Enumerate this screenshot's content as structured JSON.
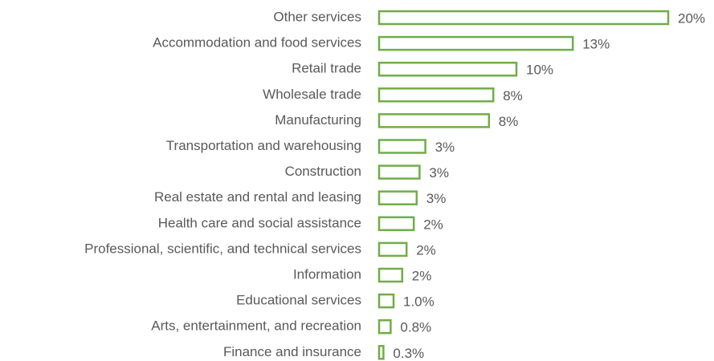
{
  "chart_data": {
    "type": "bar",
    "orientation": "horizontal",
    "color": "#70ad47",
    "categories": [
      "Other services",
      "Accommodation and food services",
      "Retail trade",
      "Wholesale trade",
      "Manufacturing",
      "Transportation and warehousing",
      "Construction",
      "Real estate and rental and leasing",
      "Health care and social assistance",
      "Professional, scientific, and technical services",
      "Information",
      "Educational services",
      "Arts, entertainment, and recreation",
      "Finance and insurance"
    ],
    "values": [
      20,
      13.4,
      9.5,
      7.9,
      7.6,
      3.2,
      2.8,
      2.6,
      2.4,
      1.9,
      1.6,
      1.0,
      0.8,
      0.3
    ],
    "value_labels": [
      "20%",
      "13%",
      "10%",
      "8%",
      "8%",
      "3%",
      "3%",
      "3%",
      "2%",
      "2%",
      "2%",
      "1.0%",
      "0.8%",
      "0.3%"
    ]
  }
}
